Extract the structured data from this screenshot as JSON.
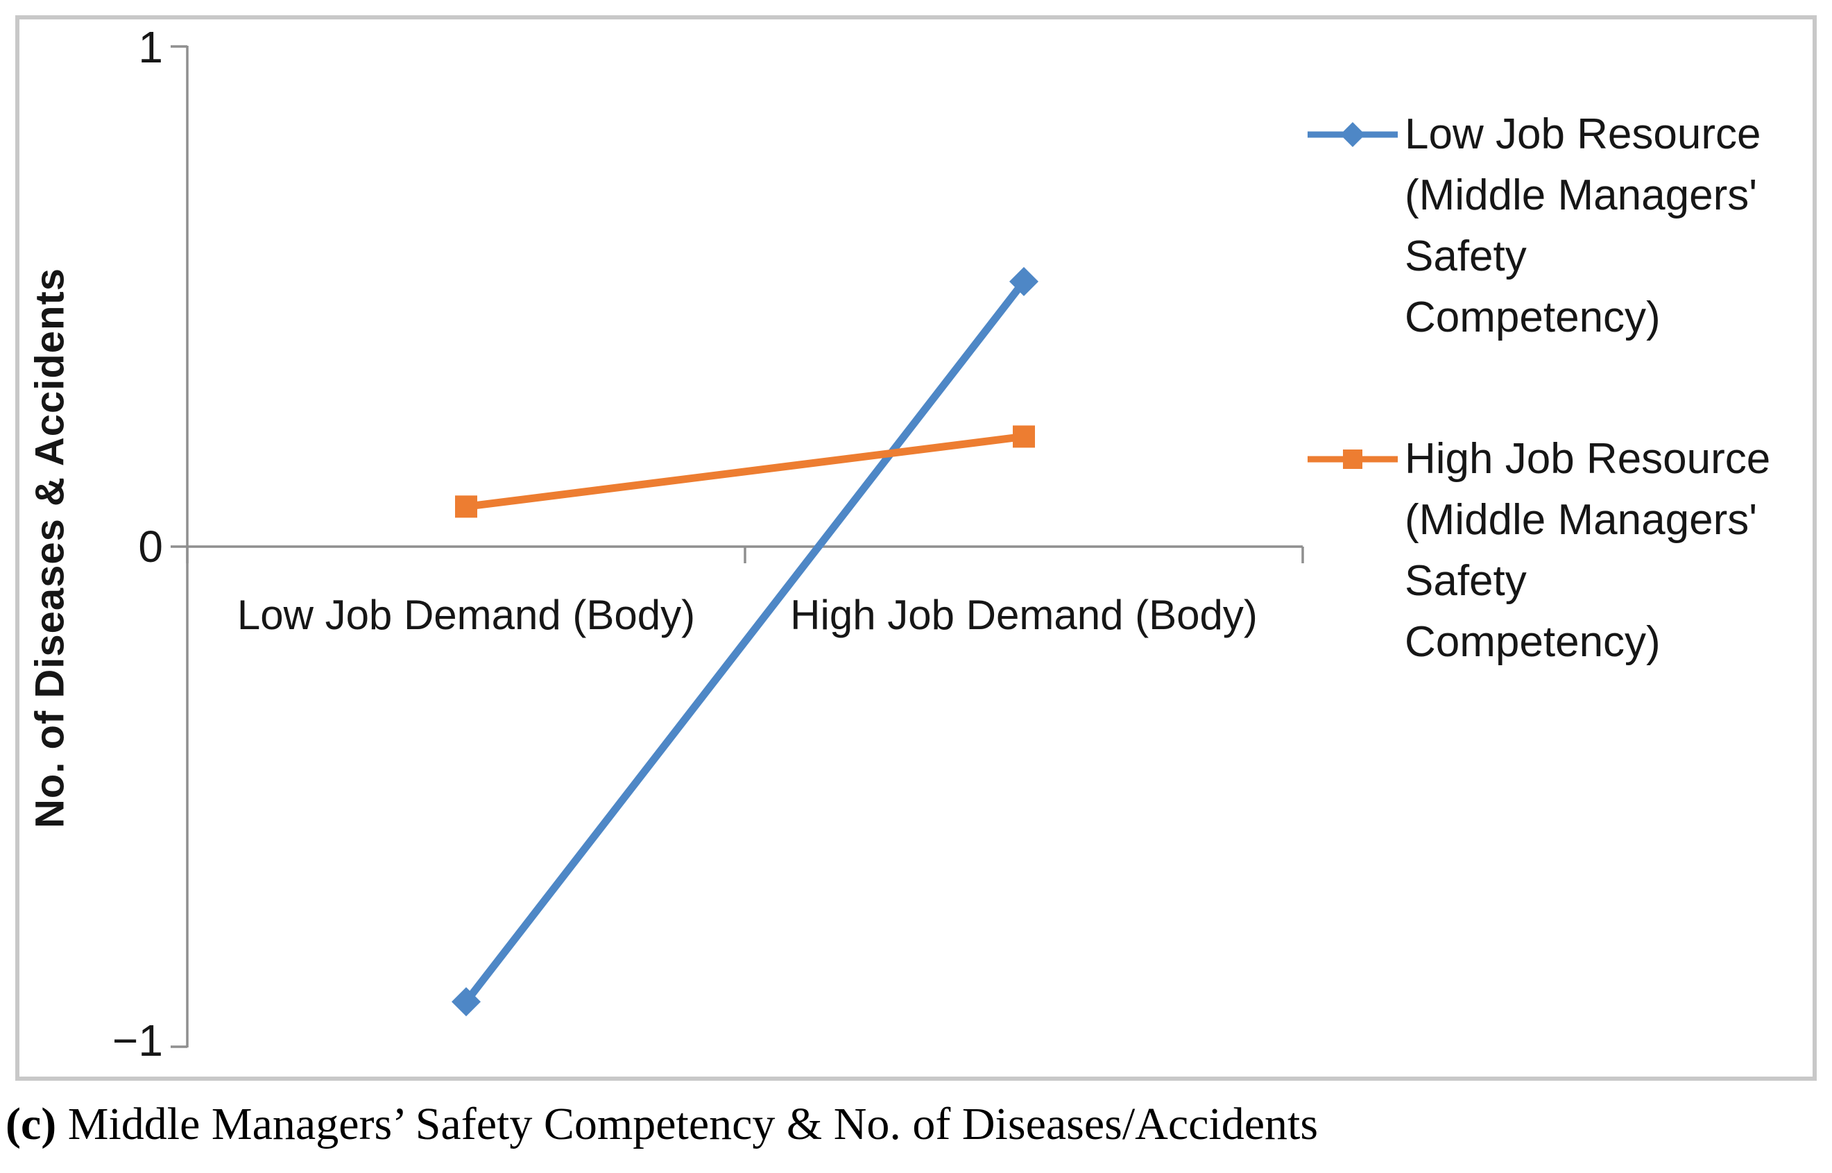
{
  "figure": {
    "caption_bold": "(c)",
    "caption_rest": " Middle Managers’ Safety Competency & No. of Diseases/Accidents"
  },
  "chart_data": {
    "type": "line",
    "title": "",
    "categories": [
      "Low Job Demand (Body)",
      "High Job Demand (Body)"
    ],
    "series": [
      {
        "name": "Low Job Resource (Middle Managers' Safety Competency)",
        "values": [
          -0.91,
          0.53
        ],
        "color": "#4E87C6",
        "marker": "diamond"
      },
      {
        "name": "High Job Resource (Middle Managers' Safety Competency)",
        "values": [
          0.08,
          0.22
        ],
        "color": "#ED7D31",
        "marker": "square"
      }
    ],
    "xlabel": "",
    "ylabel": "No. of Diseases & Accidents",
    "ylim": [
      -1,
      1
    ],
    "ytick_values": [
      1,
      0,
      -1
    ],
    "ytick_labels": [
      "1",
      "0",
      "−1"
    ],
    "grid": false,
    "legend_position": "right",
    "legend": [
      {
        "lines": [
          "Low Job Resource",
          "(Middle Managers'",
          "Safety",
          "Competency)"
        ]
      },
      {
        "lines": [
          "High Job Resource",
          "(Middle Managers'",
          "Safety",
          "Competency)"
        ]
      }
    ]
  },
  "colors": {
    "axis": "#8F8F8F",
    "border": "#C8C8C8",
    "text": "#161616",
    "series_blue": "#4E87C6",
    "series_orange": "#ED7D31"
  }
}
